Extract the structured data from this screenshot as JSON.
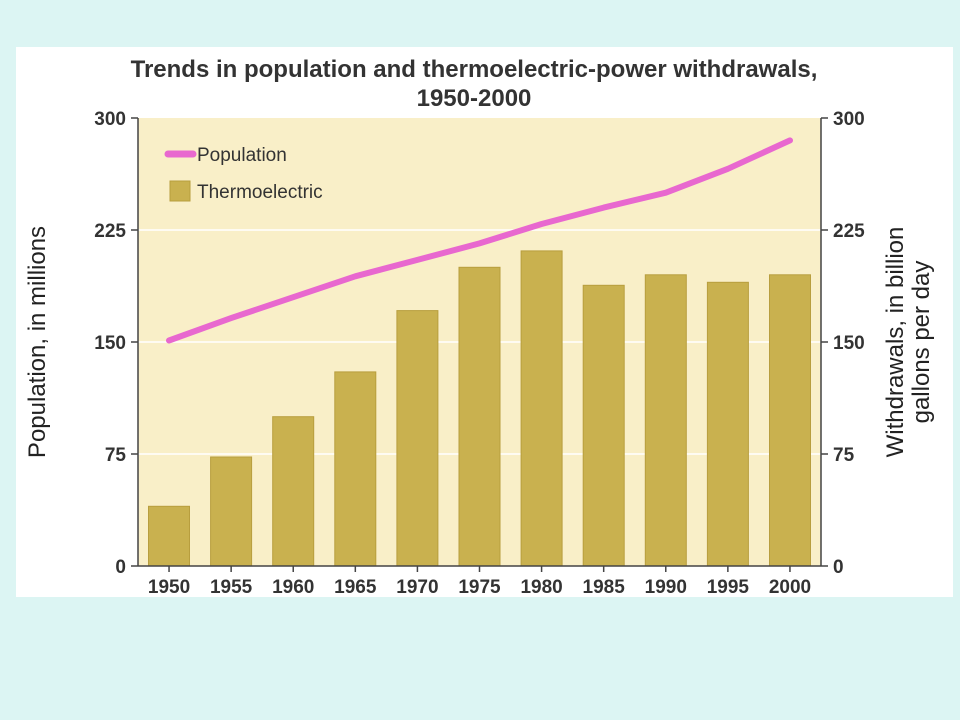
{
  "chart_data": {
    "type": "bar",
    "title_lines": [
      "Trends in population and thermoelectric-power withdrawals,",
      "1950-2000"
    ],
    "categories": [
      "1950",
      "1955",
      "1960",
      "1965",
      "1970",
      "1975",
      "1980",
      "1985",
      "1990",
      "1995",
      "2000"
    ],
    "series": [
      {
        "name": "Thermoelectric",
        "type": "bar",
        "axis": "right",
        "values": [
          40,
          73,
          100,
          130,
          171,
          200,
          211,
          188,
          195,
          190,
          195
        ]
      },
      {
        "name": "Population",
        "type": "line",
        "axis": "left",
        "values": [
          151,
          166,
          180,
          194,
          205,
          216,
          229,
          240,
          250,
          266,
          285
        ]
      }
    ],
    "ylabel_left": "Population, in millions",
    "ylabel_right_lines": [
      "Withdrawals, in billion",
      "gallons per day"
    ],
    "ylim": [
      0,
      300
    ],
    "yticks": [
      "0",
      "75",
      "150",
      "225",
      "300"
    ],
    "legend": {
      "position": "top-left",
      "items": [
        "Population",
        "Thermoelectric"
      ]
    },
    "colors": {
      "plot_bg": "#f9efc8",
      "bar": "#c9b14f",
      "bar_edge": "#b89e3e",
      "line": "#e868cf",
      "axis": "#444444"
    }
  }
}
